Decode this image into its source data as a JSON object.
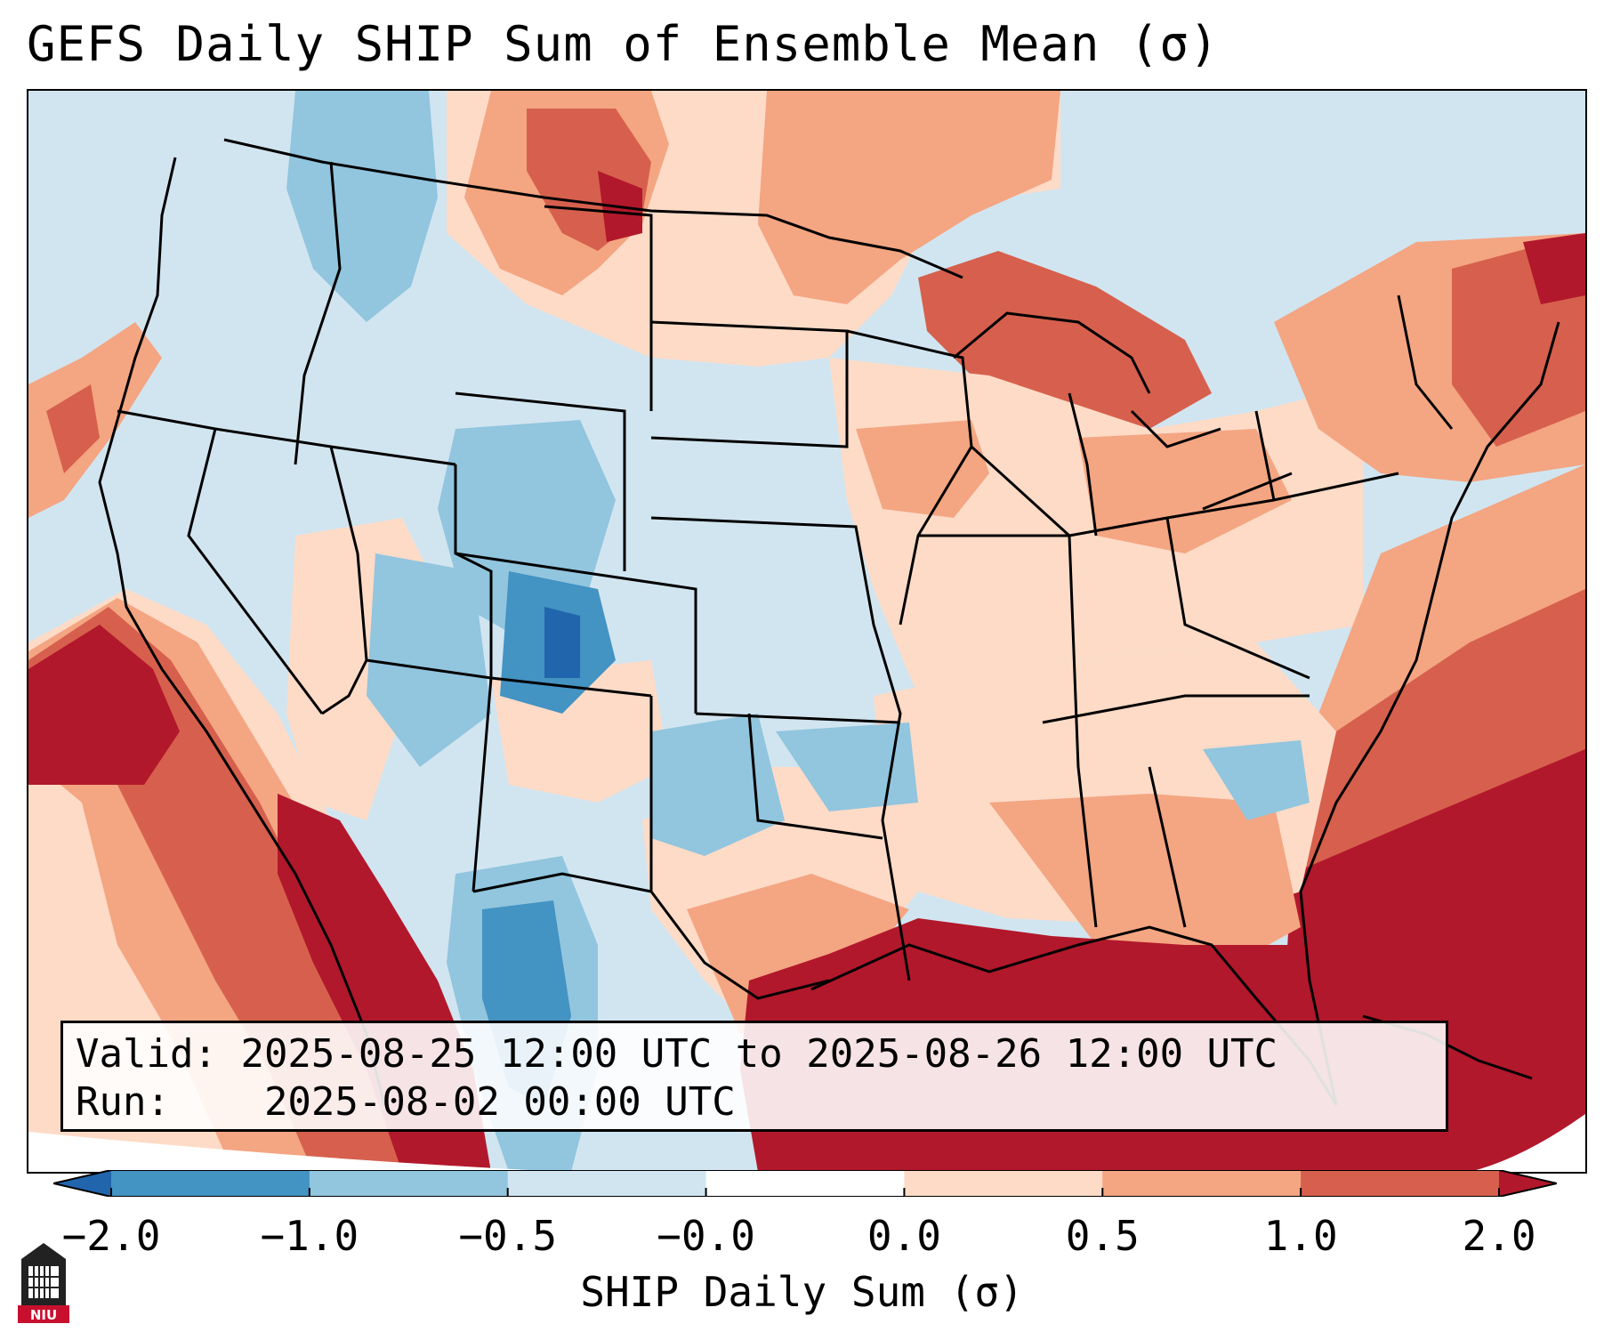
{
  "title": "GEFS Daily SHIP Sum of Ensemble Mean (σ)",
  "info": {
    "valid_label": "Valid:",
    "valid_value": "2025-08-25 12:00 UTC to 2025-08-26 12:00 UTC",
    "run_label": "Run:",
    "run_value": "2025-08-02 00:00 UTC"
  },
  "colorbar": {
    "label": "SHIP Daily Sum (σ)",
    "ticks": [
      "−2.0",
      "−1.0",
      "−0.5",
      "−0.0",
      "0.0",
      "0.5",
      "1.0",
      "2.0"
    ],
    "colors": [
      "#2166ac",
      "#4393c3",
      "#92c5de",
      "#d1e5f0",
      "#ffffff",
      "#fddbc7",
      "#f4a582",
      "#d6604d",
      "#b2182b"
    ]
  },
  "logo": {
    "text": "NIU"
  },
  "legend_colors": {
    "ocean_background": "#d1e5f0",
    "border": "#000000",
    "brand": "#c8102e"
  }
}
